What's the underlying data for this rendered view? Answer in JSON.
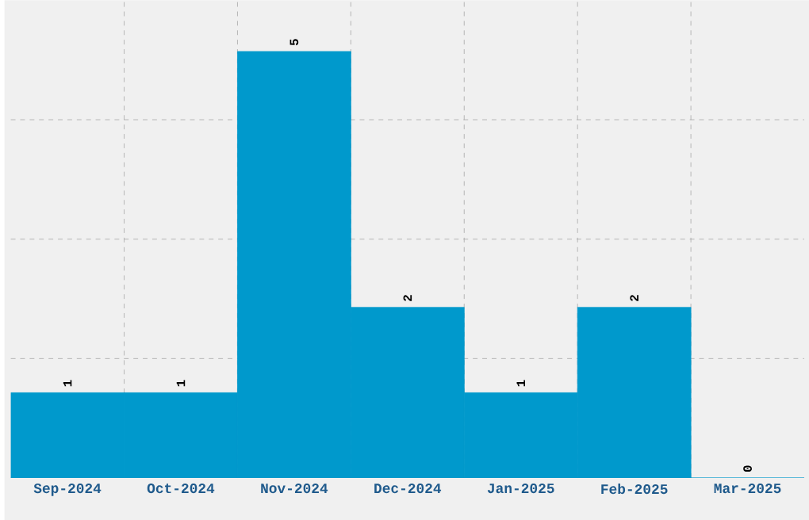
{
  "chart_data": {
    "type": "bar",
    "categories": [
      "Sep-2024",
      "Oct-2024",
      "Nov-2024",
      "Dec-2024",
      "Jan-2025",
      "Feb-2025",
      "Mar-2025"
    ],
    "values": [
      1,
      1,
      5,
      2,
      1,
      2,
      0
    ],
    "color": "#0099cc",
    "data_labels": true,
    "grid": true
  }
}
